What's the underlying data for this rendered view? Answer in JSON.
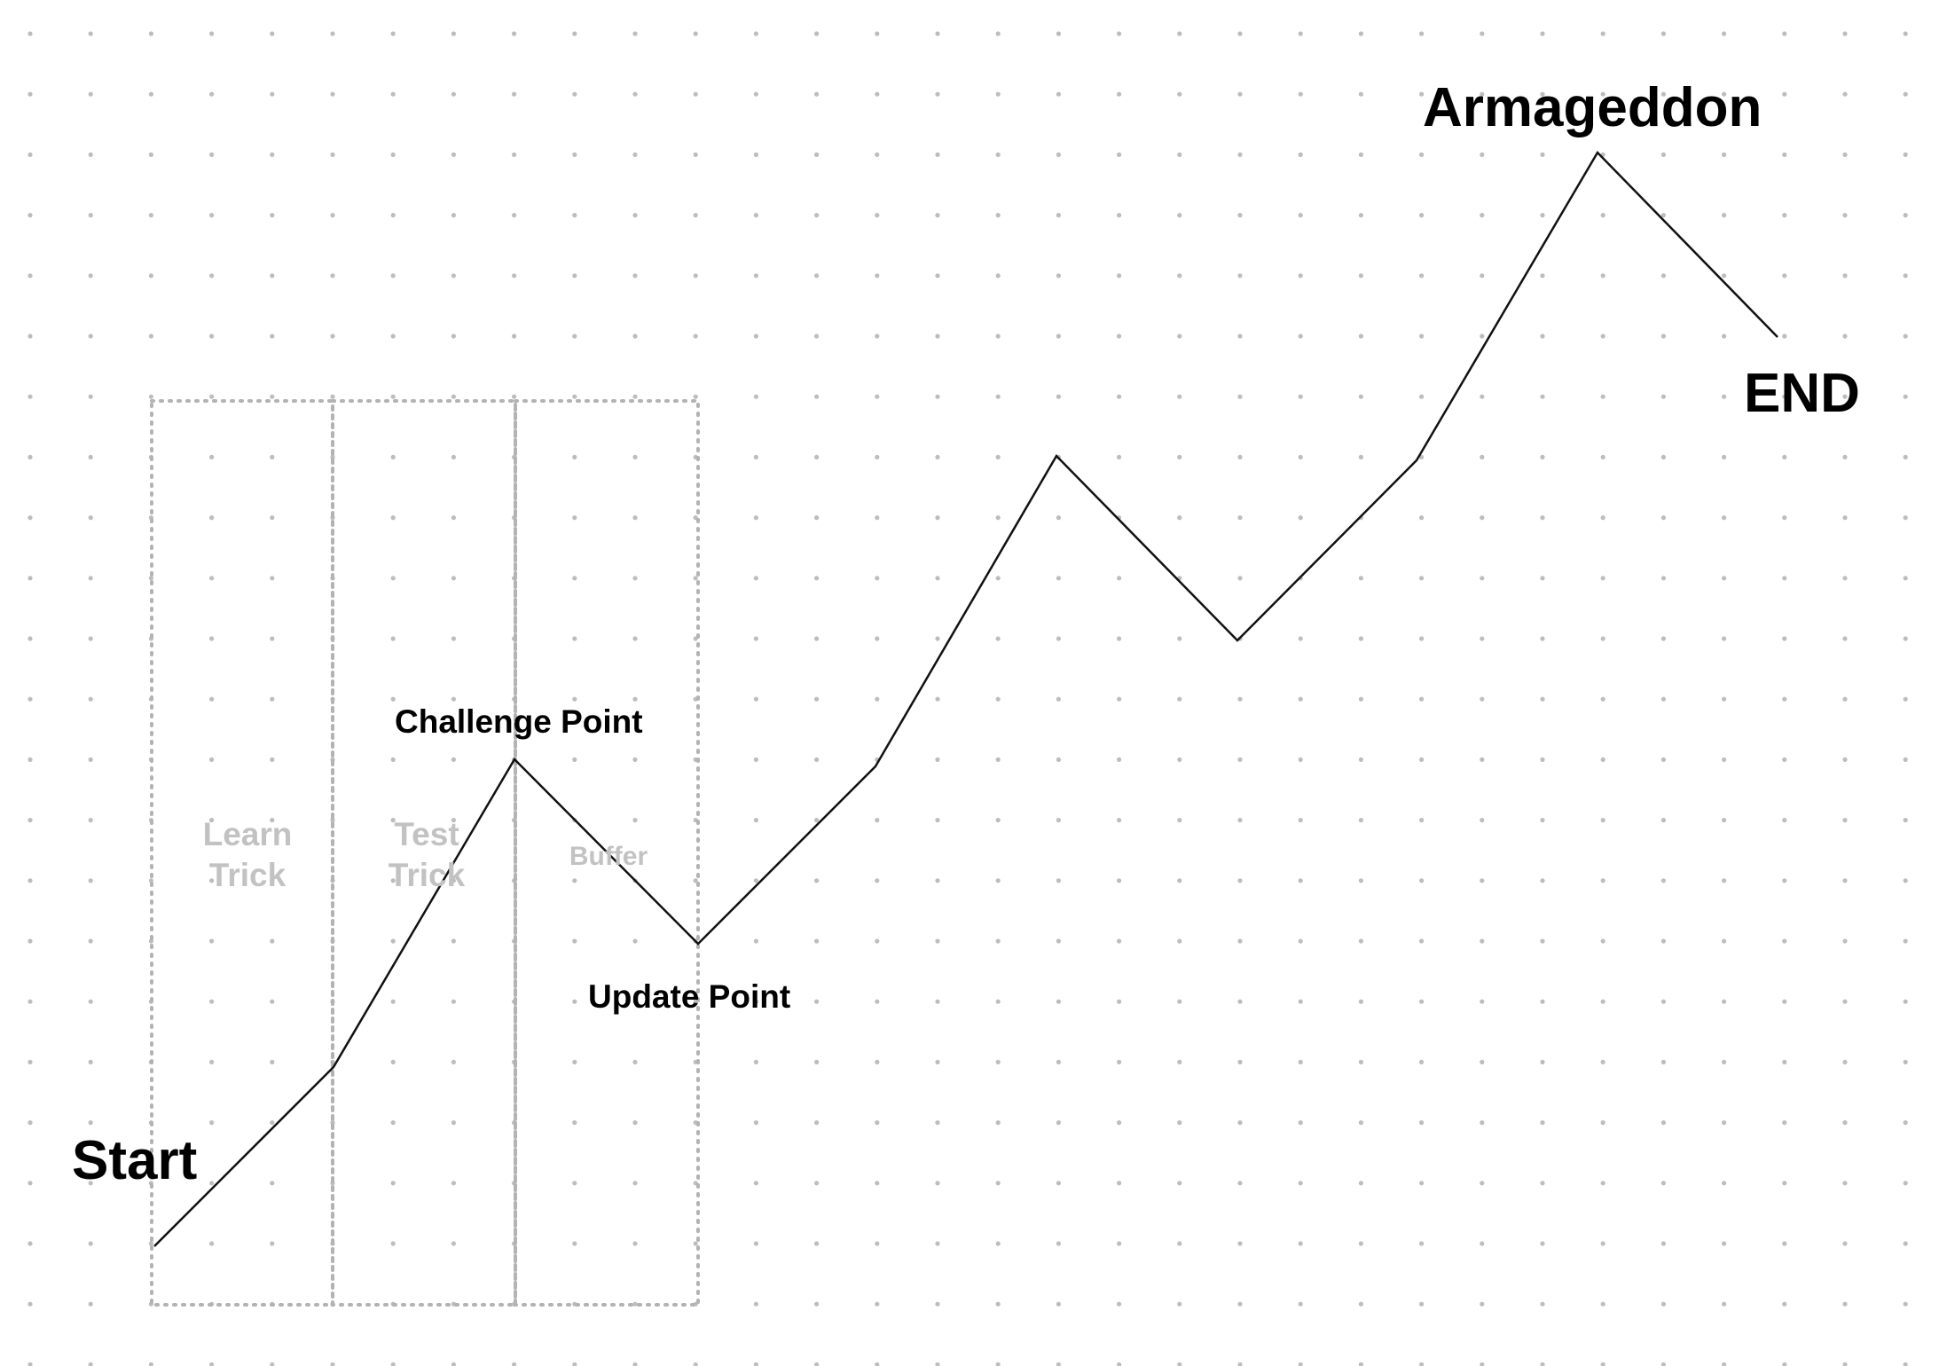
{
  "diagram": {
    "colors": {
      "line": "#111111",
      "grid_dot": "#bdbdbd",
      "zone_border": "#b3b3b3",
      "zone_text": "#c2c2c2",
      "label": "#000000"
    },
    "labels": {
      "start": "Start",
      "challenge_point": "Challenge Point",
      "update_point": "Update Point",
      "armageddon": "Armageddon",
      "end": "END"
    },
    "zones": [
      {
        "line1": "Learn",
        "line2": "Trick"
      },
      {
        "line1": "Test",
        "line2": "Trick"
      },
      {
        "line1": "Buffer",
        "line2": ""
      }
    ]
  }
}
